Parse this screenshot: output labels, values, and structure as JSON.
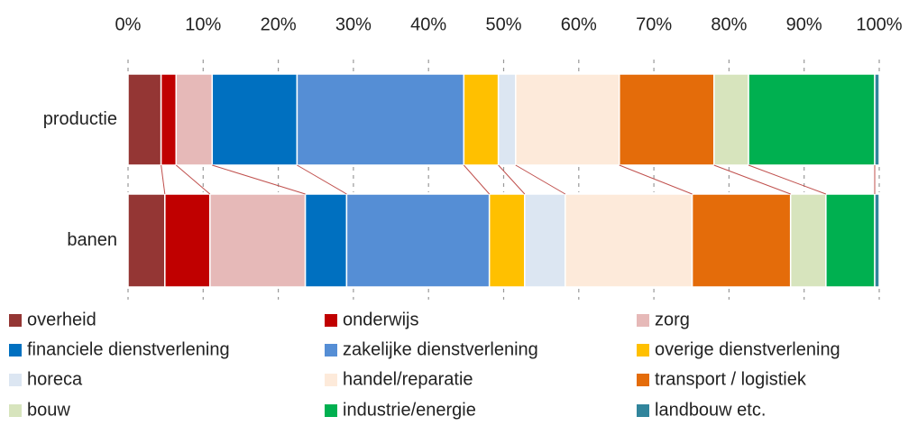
{
  "chart_data": {
    "type": "bar",
    "orientation": "horizontal",
    "stacked": true,
    "categories": [
      "productie",
      "banen"
    ],
    "xlim": [
      0,
      100
    ],
    "xticks": [
      {
        "value": 0,
        "label": "0%"
      },
      {
        "value": 10,
        "label": "10%"
      },
      {
        "value": 20,
        "label": "20%"
      },
      {
        "value": 30,
        "label": "30%"
      },
      {
        "value": 40,
        "label": "40%"
      },
      {
        "value": 50,
        "label": "50%"
      },
      {
        "value": 60,
        "label": "60%"
      },
      {
        "value": 70,
        "label": "70%"
      },
      {
        "value": 80,
        "label": "80%"
      },
      {
        "value": 90,
        "label": "90%"
      },
      {
        "value": 100,
        "label": "100%"
      }
    ],
    "series": [
      {
        "name": "overheid",
        "color": "#943634",
        "values": [
          4.4,
          4.9
        ]
      },
      {
        "name": "onderwijs",
        "color": "#c00000",
        "values": [
          2.0,
          6.0
        ]
      },
      {
        "name": "zorg",
        "color": "#e6b9b8",
        "values": [
          4.8,
          12.7
        ]
      },
      {
        "name": "financiele dienstverlening",
        "color": "#0070c0",
        "values": [
          11.3,
          5.5
        ]
      },
      {
        "name": "zakelijke dienstverlening",
        "color": "#558ed5",
        "values": [
          22.2,
          19.0
        ]
      },
      {
        "name": "overige dienstverlening",
        "color": "#ffc000",
        "values": [
          4.6,
          4.7
        ]
      },
      {
        "name": "horeca",
        "color": "#dce6f2",
        "values": [
          2.3,
          5.4
        ]
      },
      {
        "name": "handel/reparatie",
        "color": "#fdeada",
        "values": [
          13.8,
          16.9
        ]
      },
      {
        "name": "transport / logistiek",
        "color": "#e46c0a",
        "values": [
          12.6,
          13.1
        ]
      },
      {
        "name": "bouw",
        "color": "#d7e4bd",
        "values": [
          4.6,
          4.7
        ]
      },
      {
        "name": "industrie/energie",
        "color": "#00b050",
        "values": [
          16.8,
          6.5
        ]
      },
      {
        "name": "landbouw etc.",
        "color": "#31859c",
        "values": [
          0.6,
          0.6
        ]
      }
    ]
  }
}
